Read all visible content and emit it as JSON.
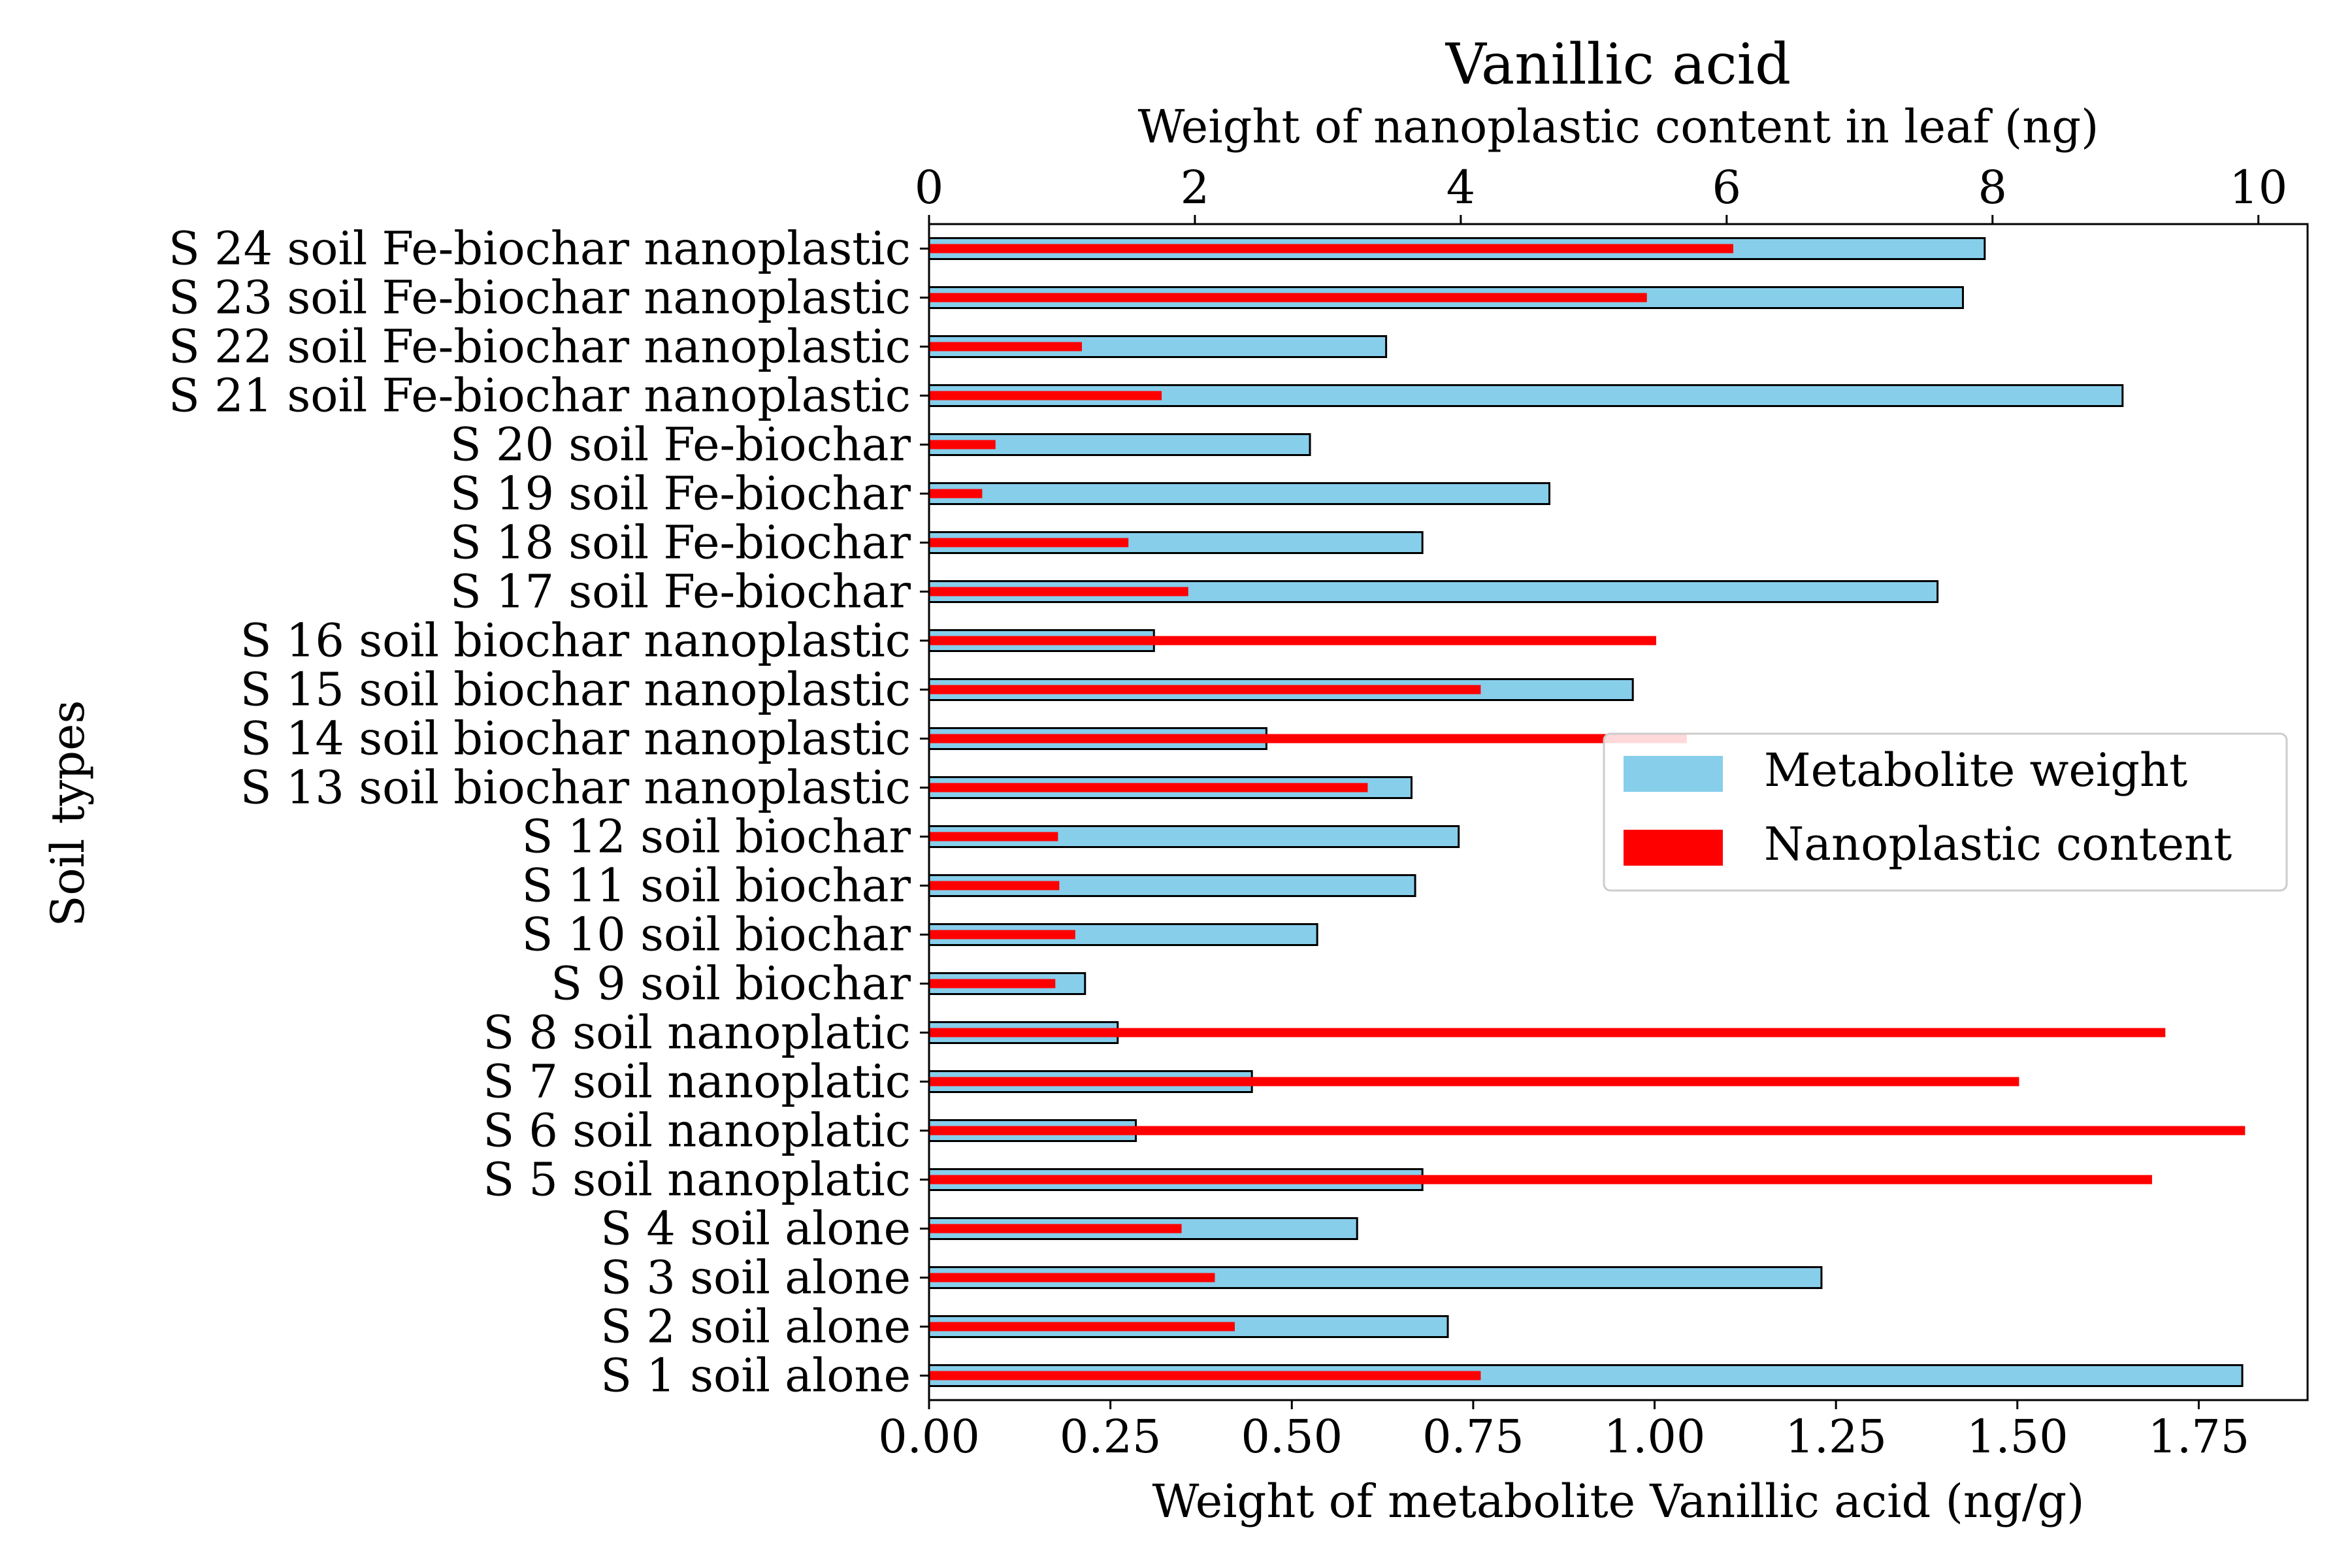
{
  "chart_data": {
    "type": "bar",
    "orientation": "horizontal",
    "title": "Vanillic acid",
    "title_color": "#a52a2a",
    "xlabel_bottom": "Weight of metabolite Vanillic acid (ng/g)",
    "xlabel_top": "Weight of nanoplastic content in leaf (ng)",
    "ylabel": "Soil types",
    "xlim_bottom": [
      0,
      1.9
    ],
    "xlim_top": [
      0,
      10.37
    ],
    "xticks_bottom": [
      "0.00",
      "0.25",
      "0.50",
      "0.75",
      "1.00",
      "1.25",
      "1.50",
      "1.75"
    ],
    "xticks_top": [
      "0",
      "2",
      "4",
      "6",
      "8",
      "10"
    ],
    "categories": [
      "S 1 soil alone",
      "S 2 soil alone",
      "S 3 soil alone",
      "S 4 soil alone",
      "S 5 soil nanoplatic",
      "S 6 soil nanoplatic",
      "S 7 soil nanoplatic",
      "S 8 soil nanoplatic",
      "S 9 soil biochar",
      "S 10 soil biochar",
      "S 11 soil biochar",
      "S 12 soil biochar",
      "S 13 soil biochar nanoplastic",
      "S 14 soil biochar nanoplastic",
      "S 15 soil biochar nanoplastic",
      "S 16 soil biochar nanoplastic",
      "S 17 soil Fe-biochar",
      "S 18 soil Fe-biochar",
      "S 19 soil Fe-biochar",
      "S 20 soil Fe-biochar",
      "S 21 soil Fe-biochar nanoplastic",
      "S 22 soil Fe-biochar nanoplastic",
      "S 23 soil Fe-biochar nanoplastic",
      "S 24 soil Fe-biochar nanoplastic"
    ],
    "series": [
      {
        "name": "Metabolite weight",
        "axis": "bottom",
        "color": "#87ceeb",
        "edge_color": "#000000",
        "values": [
          1.81,
          0.715,
          1.23,
          0.59,
          0.68,
          0.285,
          0.445,
          0.26,
          0.215,
          0.535,
          0.67,
          0.73,
          0.665,
          0.465,
          0.97,
          0.31,
          1.39,
          0.68,
          0.855,
          0.525,
          1.645,
          0.63,
          1.425,
          1.455
        ]
      },
      {
        "name": "Nanoplastic content",
        "axis": "top",
        "color": "#ff0000",
        "values": [
          4.15,
          2.3,
          2.15,
          1.9,
          9.2,
          9.9,
          8.2,
          9.3,
          0.95,
          1.1,
          0.98,
          0.97,
          3.3,
          5.7,
          4.15,
          5.47,
          1.95,
          1.5,
          0.4,
          0.5,
          1.75,
          1.15,
          5.4,
          6.05
        ]
      }
    ],
    "legend": {
      "position": "right",
      "entries": [
        "Metabolite weight",
        "Nanoplastic content"
      ]
    }
  }
}
